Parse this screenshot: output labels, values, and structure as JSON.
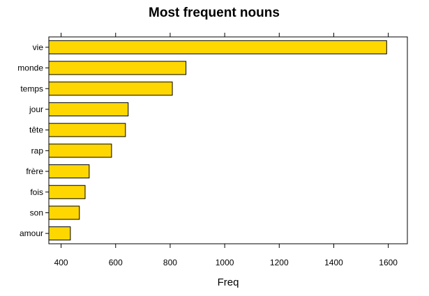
{
  "chart_data": {
    "type": "bar",
    "orientation": "horizontal",
    "title": "Most frequent nouns",
    "xlabel": "Freq",
    "ylabel": "",
    "categories": [
      "vie",
      "monde",
      "temps",
      "jour",
      "tête",
      "rap",
      "frère",
      "fois",
      "son",
      "amour"
    ],
    "values": [
      1594,
      858,
      808,
      646,
      636,
      585,
      503,
      488,
      467,
      434
    ],
    "x_ticks": [
      400,
      600,
      800,
      1000,
      1200,
      1400,
      1600
    ],
    "xlim": [
      355,
      1670
    ],
    "grid": false,
    "legend": "none",
    "bar_color": "#FFD700",
    "bar_edge_color": "#000000"
  }
}
